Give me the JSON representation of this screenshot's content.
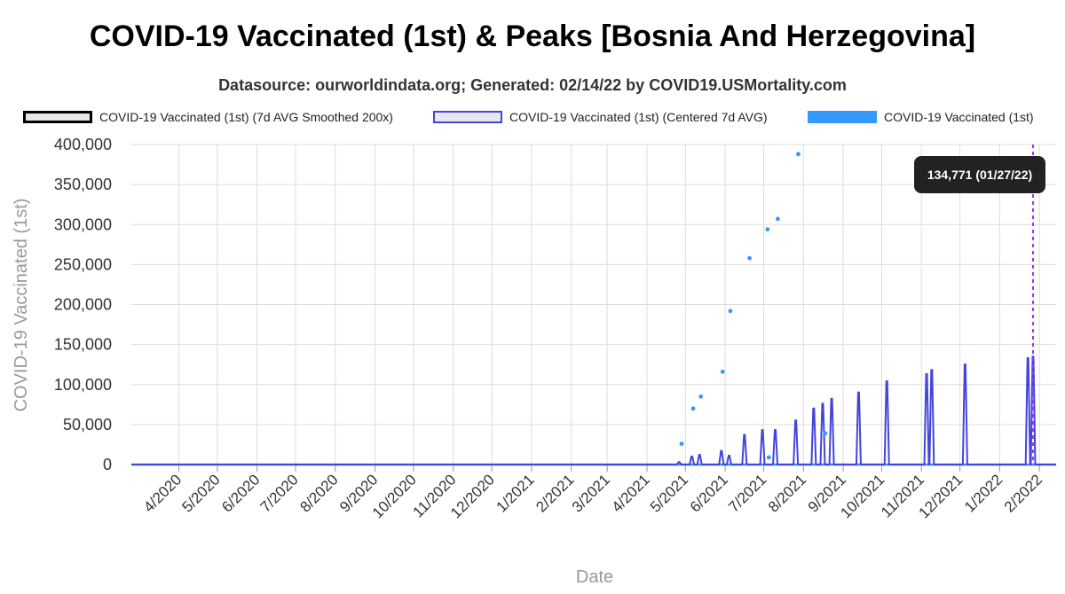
{
  "title": "COVID-19 Vaccinated (1st) & Peaks [Bosnia And Herzegovina]",
  "subtitle": "Datasource: ourworldindata.org; Generated: 02/14/22 by COVID19.USMortality.com",
  "tooltip": "134,771 (01/27/22)",
  "colors": {
    "smoothed_fill": "#e6e6e6",
    "smoothed_border": "#000000",
    "centered_fill": "#e8e8f0",
    "centered_border": "#4444dd",
    "daily": "#3399ff",
    "marker_line": "#9933ff",
    "grid": "#dddddd"
  },
  "chart_data": {
    "type": "line",
    "title": "COVID-19 Vaccinated (1st) & Peaks [Bosnia And Herzegovina]",
    "xlabel": "Date",
    "ylabel": "COVID-19 Vaccinated (1st)",
    "ylim": [
      0,
      400000
    ],
    "yticks": [
      "0",
      "50,000",
      "100,000",
      "150,000",
      "200,000",
      "250,000",
      "300,000",
      "350,000",
      "400,000"
    ],
    "xticks": [
      "4/2020",
      "5/2020",
      "6/2020",
      "7/2020",
      "8/2020",
      "9/2020",
      "10/2020",
      "11/2020",
      "12/2020",
      "1/2021",
      "2/2021",
      "3/2021",
      "4/2021",
      "5/2021",
      "6/2021",
      "7/2021",
      "8/2021",
      "9/2021",
      "10/2021",
      "11/2021",
      "12/2021",
      "1/2022",
      "2/2022"
    ],
    "legend_position": "top",
    "grid": true,
    "marker_date": "2022-01-27",
    "series": [
      {
        "name": "COVID-19 Vaccinated (1st) (7d AVG Smoothed 200x)",
        "style": "line",
        "values": []
      },
      {
        "name": "COVID-19 Vaccinated (1st) (Centered 7d AVG)",
        "style": "spikes",
        "points": [
          {
            "x": "2021-04-26",
            "y": 3000
          },
          {
            "x": "2021-05-06",
            "y": 10000
          },
          {
            "x": "2021-05-12",
            "y": 12000
          },
          {
            "x": "2021-05-29",
            "y": 17000
          },
          {
            "x": "2021-06-04",
            "y": 11000
          },
          {
            "x": "2021-06-16",
            "y": 37000
          },
          {
            "x": "2021-06-30",
            "y": 43000
          },
          {
            "x": "2021-07-10",
            "y": 43000
          },
          {
            "x": "2021-07-26",
            "y": 55000
          },
          {
            "x": "2021-08-09",
            "y": 70000
          },
          {
            "x": "2021-08-16",
            "y": 76000
          },
          {
            "x": "2021-08-23",
            "y": 82000
          },
          {
            "x": "2021-09-13",
            "y": 90000
          },
          {
            "x": "2021-10-05",
            "y": 104000
          },
          {
            "x": "2021-11-05",
            "y": 113000
          },
          {
            "x": "2021-11-09",
            "y": 118000
          },
          {
            "x": "2021-12-05",
            "y": 125000
          },
          {
            "x": "2022-01-23",
            "y": 133000
          },
          {
            "x": "2022-01-27",
            "y": 134771
          }
        ]
      },
      {
        "name": "COVID-19 Vaccinated (1st)",
        "style": "scatter",
        "points": [
          {
            "x": "2021-04-28",
            "y": 26000
          },
          {
            "x": "2021-05-07",
            "y": 70000
          },
          {
            "x": "2021-05-13",
            "y": 85000
          },
          {
            "x": "2021-05-30",
            "y": 116000
          },
          {
            "x": "2021-06-05",
            "y": 192000
          },
          {
            "x": "2021-06-20",
            "y": 258000
          },
          {
            "x": "2021-07-04",
            "y": 294000
          },
          {
            "x": "2021-07-12",
            "y": 307000
          },
          {
            "x": "2021-07-28",
            "y": 388000
          },
          {
            "x": "2021-08-18",
            "y": 39000
          },
          {
            "x": "2021-07-05",
            "y": 9000
          }
        ]
      }
    ]
  }
}
